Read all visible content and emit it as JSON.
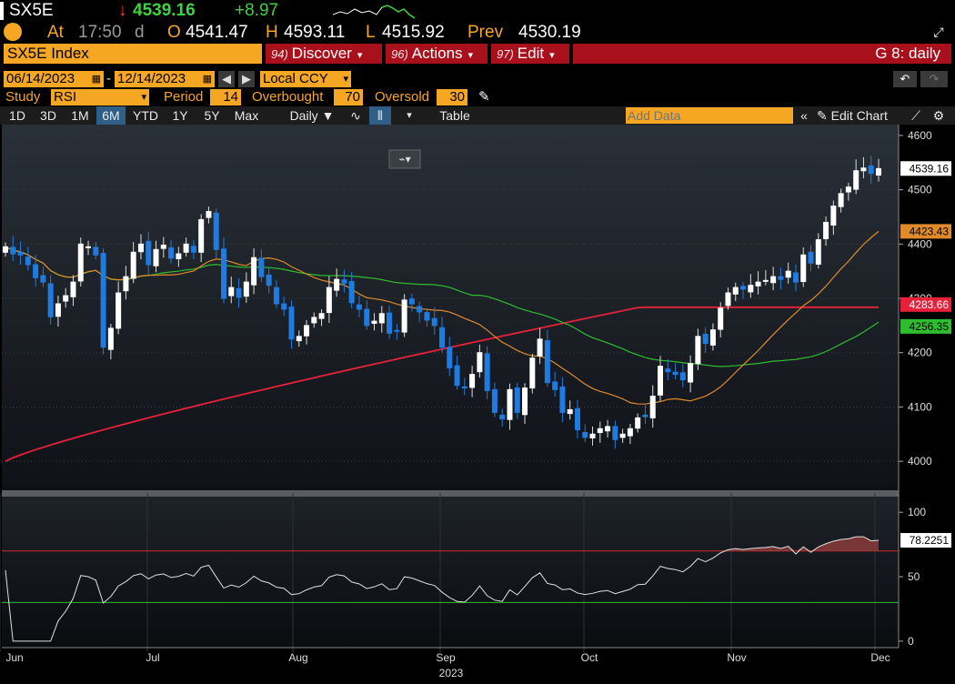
{
  "header": {
    "ticker": "SX5E",
    "last_arrow": "↓",
    "last": "4539.16",
    "change": "+8.97",
    "at_label": "At",
    "time": "17:50",
    "time_suffix": "d",
    "open_label": "O",
    "open": "4541.47",
    "high_label": "H",
    "high": "4593.11",
    "low_label": "L",
    "low": "4515.92",
    "prev_label": "Prev",
    "prev": "4530.19"
  },
  "security": "SX5E Index",
  "menus": [
    {
      "num": "94)",
      "label": "Discover"
    },
    {
      "num": "96)",
      "label": "Actions"
    },
    {
      "num": "97)",
      "label": "Edit"
    }
  ],
  "page_id": "G 8: daily",
  "range": {
    "start": "06/14/2023",
    "end": "12/14/2023",
    "currency": "Local CCY"
  },
  "study": {
    "label": "Study",
    "value": "RSI",
    "period_label": "Period",
    "period": "14",
    "overbought_label": "Overbought",
    "overbought": "70",
    "oversold_label": "Oversold",
    "oversold": "30"
  },
  "toolbar": {
    "periods": [
      "1D",
      "3D",
      "1M",
      "6M",
      "YTD",
      "1Y",
      "5Y",
      "Max"
    ],
    "selected": "6M",
    "frequency": "Daily ▼",
    "table": "Table",
    "add_data_placeholder": "Add Data",
    "edit_chart": "Edit Chart"
  },
  "colors": {
    "accent": "#f5a623",
    "up": "#ffffff",
    "down": "#1e7be0",
    "ma_short": "#e08a2c",
    "ma_mid": "#2ebd2e",
    "ma_long": "#e8213a",
    "rsi": "#e0e0e0"
  },
  "chart_data": [
    {
      "type": "candlestick",
      "ylim": [
        3950,
        4620
      ],
      "y_ticks": [
        4000,
        4100,
        4200,
        4300,
        4400,
        4500,
        4600
      ],
      "x_tick_labels": [
        "Jun",
        "Jul",
        "Aug",
        "Sep",
        "Oct",
        "Nov",
        "Dec"
      ],
      "x_year_label": "2023",
      "last_labels": [
        "4539.16",
        "4423.43",
        "4283.66",
        "4256.35"
      ],
      "closes": [
        4395,
        4382,
        4380,
        4362,
        4338,
        4330,
        4266,
        4290,
        4305,
        4330,
        4400,
        4395,
        4380,
        4210,
        4245,
        4310,
        4340,
        4385,
        4400,
        4362,
        4390,
        4398,
        4374,
        4382,
        4400,
        4385,
        4445,
        4460,
        4390,
        4300,
        4320,
        4302,
        4330,
        4375,
        4340,
        4324,
        4290,
        4280,
        4225,
        4230,
        4250,
        4265,
        4272,
        4320,
        4335,
        4328,
        4292,
        4280,
        4250,
        4258,
        4272,
        4236,
        4240,
        4297,
        4290,
        4275,
        4260,
        4250,
        4210,
        4172,
        4140,
        4135,
        4160,
        4200,
        4130,
        4090,
        4078,
        4132,
        4090,
        4135,
        4190,
        4225,
        4145,
        4132,
        4090,
        4095,
        4058,
        4044,
        4050,
        4060,
        4064,
        4040,
        4050,
        4060,
        4080,
        4082,
        4120,
        4175,
        4165,
        4160,
        4150,
        4180,
        4230,
        4217,
        4242,
        4282,
        4310,
        4320,
        4317,
        4324,
        4330,
        4333,
        4340,
        4335,
        4350,
        4330,
        4380,
        4365,
        4408,
        4440,
        4470,
        4493,
        4505,
        4535,
        4540,
        4530,
        4539
      ],
      "ma_short_last": 4423.43,
      "ma_mid_last": 4256.35,
      "ma_long_last": 4283.66
    },
    {
      "type": "line",
      "name": "RSI",
      "ylim": [
        -5,
        110
      ],
      "y_ticks": [
        0,
        50,
        100
      ],
      "overbought": 70,
      "oversold": 30,
      "last_label": "78.2251"
    }
  ]
}
